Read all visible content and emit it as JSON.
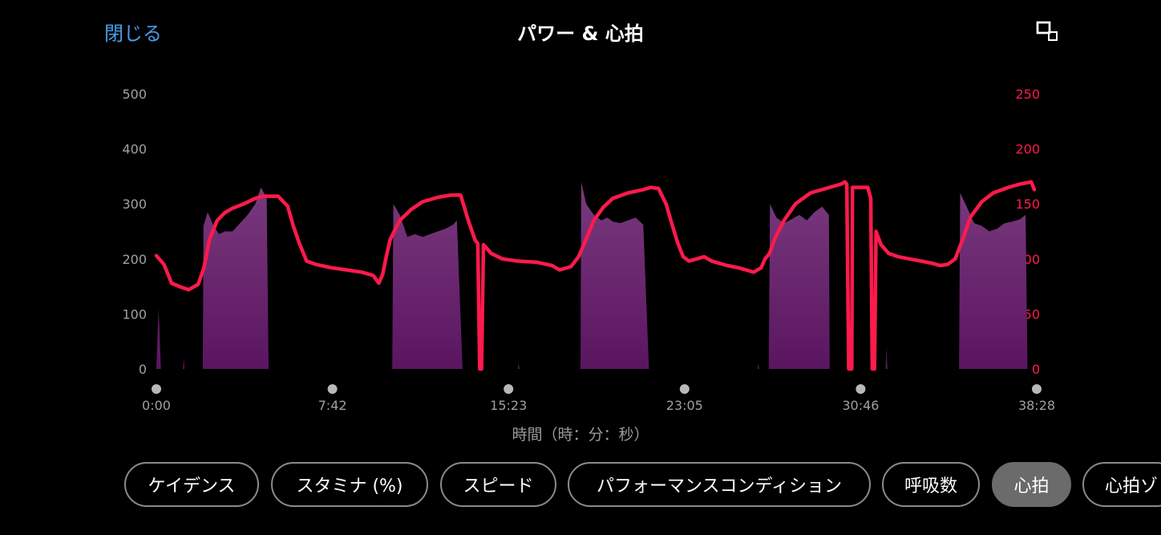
{
  "header": {
    "close_label": "閉じる",
    "title": "パワー & 心拍",
    "expand_icon": "expand-icon"
  },
  "colors": {
    "accent": "#4a9ce8",
    "heart_rate": "#ff1a4b",
    "power_fill_top": "#7a3a7e",
    "power_fill_bottom": "#5a1560",
    "axis_text": "#a0a0a0"
  },
  "chart_data": {
    "type": "area",
    "title": "パワー & 心拍",
    "xlabel": "時間（時：分：秒）",
    "x_ticks": [
      "0:00",
      "7:42",
      "15:23",
      "23:05",
      "30:46",
      "38:28"
    ],
    "x_range_seconds": [
      0,
      2308
    ],
    "left_axis": {
      "ticks": [
        "0",
        "100",
        "200",
        "300",
        "400",
        "500"
      ],
      "ylim": [
        0,
        500
      ]
    },
    "right_axis": {
      "ticks": [
        "0",
        "50",
        "100",
        "150",
        "200",
        "250"
      ],
      "ylim": [
        0,
        250
      ]
    },
    "series": [
      {
        "kind": "area",
        "axis": "left",
        "points": [
          [
            0,
            0
          ],
          [
            6,
            110
          ],
          [
            12,
            0
          ],
          [
            70,
            0
          ],
          [
            72,
            20
          ],
          [
            74,
            0
          ],
          [
            122,
            0
          ],
          [
            124,
            260
          ],
          [
            135,
            285
          ],
          [
            150,
            260
          ],
          [
            165,
            245
          ],
          [
            180,
            250
          ],
          [
            200,
            250
          ],
          [
            220,
            265
          ],
          [
            240,
            280
          ],
          [
            260,
            300
          ],
          [
            275,
            330
          ],
          [
            290,
            310
          ],
          [
            295,
            0
          ],
          [
            620,
            0
          ],
          [
            623,
            300
          ],
          [
            640,
            280
          ],
          [
            660,
            240
          ],
          [
            680,
            245
          ],
          [
            700,
            240
          ],
          [
            720,
            245
          ],
          [
            740,
            250
          ],
          [
            760,
            255
          ],
          [
            780,
            262
          ],
          [
            790,
            270
          ],
          [
            805,
            0
          ],
          [
            950,
            0
          ],
          [
            952,
            10
          ],
          [
            955,
            0
          ],
          [
            1115,
            0
          ],
          [
            1117,
            340
          ],
          [
            1130,
            300
          ],
          [
            1150,
            280
          ],
          [
            1170,
            270
          ],
          [
            1185,
            275
          ],
          [
            1200,
            268
          ],
          [
            1220,
            265
          ],
          [
            1240,
            270
          ],
          [
            1260,
            275
          ],
          [
            1280,
            262
          ],
          [
            1295,
            0
          ],
          [
            1580,
            0
          ],
          [
            1582,
            10
          ],
          [
            1585,
            0
          ],
          [
            1610,
            0
          ],
          [
            1613,
            300
          ],
          [
            1630,
            275
          ],
          [
            1650,
            265
          ],
          [
            1670,
            272
          ],
          [
            1690,
            280
          ],
          [
            1710,
            270
          ],
          [
            1730,
            285
          ],
          [
            1750,
            295
          ],
          [
            1768,
            280
          ],
          [
            1770,
            0
          ],
          [
            1917,
            0
          ],
          [
            1919,
            40
          ],
          [
            1922,
            0
          ],
          [
            2110,
            0
          ],
          [
            2113,
            320
          ],
          [
            2130,
            295
          ],
          [
            2150,
            265
          ],
          [
            2170,
            260
          ],
          [
            2190,
            250
          ],
          [
            2210,
            255
          ],
          [
            2230,
            265
          ],
          [
            2250,
            268
          ],
          [
            2270,
            272
          ],
          [
            2285,
            280
          ],
          [
            2290,
            0
          ],
          [
            2308,
            0
          ]
        ]
      },
      {
        "kind": "line",
        "axis": "right",
        "points": [
          [
            0,
            103
          ],
          [
            20,
            95
          ],
          [
            40,
            78
          ],
          [
            60,
            75
          ],
          [
            85,
            72
          ],
          [
            110,
            77
          ],
          [
            125,
            92
          ],
          [
            140,
            118
          ],
          [
            160,
            135
          ],
          [
            180,
            142
          ],
          [
            200,
            146
          ],
          [
            230,
            150
          ],
          [
            260,
            155
          ],
          [
            280,
            157
          ],
          [
            320,
            157
          ],
          [
            345,
            148
          ],
          [
            360,
            130
          ],
          [
            375,
            115
          ],
          [
            395,
            98
          ],
          [
            420,
            95
          ],
          [
            460,
            92
          ],
          [
            500,
            90
          ],
          [
            540,
            88
          ],
          [
            570,
            85
          ],
          [
            585,
            78
          ],
          [
            595,
            86
          ],
          [
            605,
            103
          ],
          [
            615,
            118
          ],
          [
            640,
            135
          ],
          [
            670,
            145
          ],
          [
            700,
            152
          ],
          [
            740,
            156
          ],
          [
            775,
            158
          ],
          [
            800,
            158
          ],
          [
            820,
            135
          ],
          [
            838,
            117
          ],
          [
            845,
            114
          ],
          [
            850,
            0
          ],
          [
            855,
            0
          ],
          [
            860,
            113
          ],
          [
            880,
            105
          ],
          [
            910,
            100
          ],
          [
            950,
            98
          ],
          [
            1000,
            97
          ],
          [
            1040,
            94
          ],
          [
            1060,
            90
          ],
          [
            1090,
            93
          ],
          [
            1110,
            102
          ],
          [
            1130,
            118
          ],
          [
            1150,
            135
          ],
          [
            1175,
            147
          ],
          [
            1200,
            155
          ],
          [
            1240,
            160
          ],
          [
            1280,
            163
          ],
          [
            1300,
            165
          ],
          [
            1320,
            164
          ],
          [
            1340,
            150
          ],
          [
            1355,
            132
          ],
          [
            1370,
            115
          ],
          [
            1385,
            102
          ],
          [
            1400,
            98
          ],
          [
            1420,
            100
          ],
          [
            1440,
            102
          ],
          [
            1460,
            98
          ],
          [
            1480,
            96
          ],
          [
            1500,
            94
          ],
          [
            1530,
            92
          ],
          [
            1550,
            90
          ],
          [
            1570,
            88
          ],
          [
            1590,
            92
          ],
          [
            1600,
            100
          ],
          [
            1612,
            105
          ],
          [
            1625,
            118
          ],
          [
            1650,
            135
          ],
          [
            1680,
            150
          ],
          [
            1720,
            160
          ],
          [
            1760,
            164
          ],
          [
            1800,
            168
          ],
          [
            1810,
            170
          ],
          [
            1815,
            168
          ],
          [
            1820,
            0
          ],
          [
            1828,
            0
          ],
          [
            1830,
            165
          ],
          [
            1870,
            165
          ],
          [
            1878,
            155
          ],
          [
            1882,
            0
          ],
          [
            1888,
            0
          ],
          [
            1892,
            125
          ],
          [
            1905,
            113
          ],
          [
            1925,
            105
          ],
          [
            1950,
            102
          ],
          [
            1980,
            100
          ],
          [
            2010,
            98
          ],
          [
            2040,
            96
          ],
          [
            2060,
            94
          ],
          [
            2080,
            95
          ],
          [
            2100,
            100
          ],
          [
            2120,
            118
          ],
          [
            2140,
            138
          ],
          [
            2170,
            152
          ],
          [
            2200,
            160
          ],
          [
            2240,
            165
          ],
          [
            2270,
            168
          ],
          [
            2300,
            170
          ],
          [
            2308,
            163
          ]
        ]
      }
    ]
  },
  "pills": [
    {
      "label": "ケイデンス",
      "active": false
    },
    {
      "label": "スタミナ (%)",
      "active": false
    },
    {
      "label": "スピード",
      "active": false
    },
    {
      "label": "パフォーマンスコンディション",
      "active": false
    },
    {
      "label": "呼吸数",
      "active": false
    },
    {
      "label": "心拍",
      "active": true
    },
    {
      "label": "心拍ゾ",
      "active": false
    }
  ]
}
